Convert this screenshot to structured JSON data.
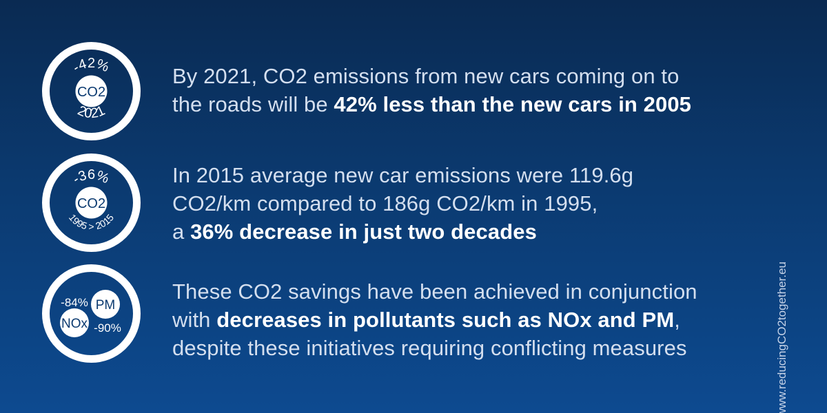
{
  "items": [
    {
      "badge": {
        "top_text": "-42%",
        "center_text": "CO2",
        "bottom_text": "2021"
      },
      "statement": {
        "line1": "By 2021, CO2 emissions from new cars coming on to",
        "line2_prefix": "the roads will be ",
        "line2_bold": "42% less than the new cars in 2005"
      }
    },
    {
      "badge": {
        "top_text": "-36%",
        "center_text": "CO2",
        "bottom_text": "1995 > 2015"
      },
      "statement": {
        "line1": "In 2015 average new car emissions were 119.6g",
        "line2": "CO2/km compared to 186g CO2/km in 1995,",
        "line3_prefix": "a ",
        "line3_bold": "36% decrease in just two decades"
      }
    },
    {
      "badge": {
        "nox_value": "-84%",
        "nox_label": "NOx",
        "pm_label": "PM",
        "pm_value": "-90%"
      },
      "statement": {
        "line1": "These CO2 savings have been achieved in conjunction",
        "line2_prefix": "with ",
        "line2_bold": "decreases in pollutants such as NOx and PM",
        "line2_suffix": ",",
        "line3": "despite these initiatives requiring conflicting measures"
      }
    }
  ],
  "side_url": "www.reducingCO2together.eu",
  "colors": {
    "background_top": "#0a2a52",
    "background_bottom": "#0d4a90",
    "text_light": "#d4dfef",
    "text_bold": "#ffffff"
  }
}
